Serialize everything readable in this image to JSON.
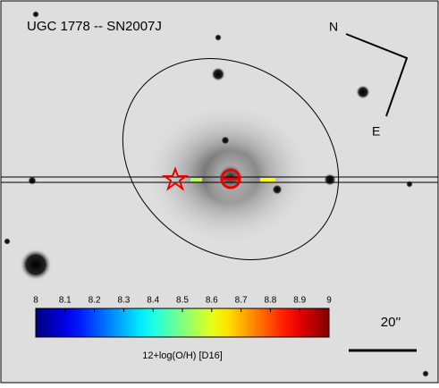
{
  "title": "UGC 1778 -- SN2007J",
  "compass": {
    "north": "N",
    "east": "E"
  },
  "colorbar": {
    "label": "12+log(O/H) [D16]",
    "range": [
      8,
      9
    ],
    "ticks": [
      8,
      8.1,
      8.2,
      8.3,
      8.4,
      8.5,
      8.6,
      8.7,
      8.8,
      8.9,
      9
    ]
  },
  "slit_segments": {
    "values": [
      8.55,
      8.62
    ]
  },
  "scale_bar": {
    "label": "20''"
  }
}
